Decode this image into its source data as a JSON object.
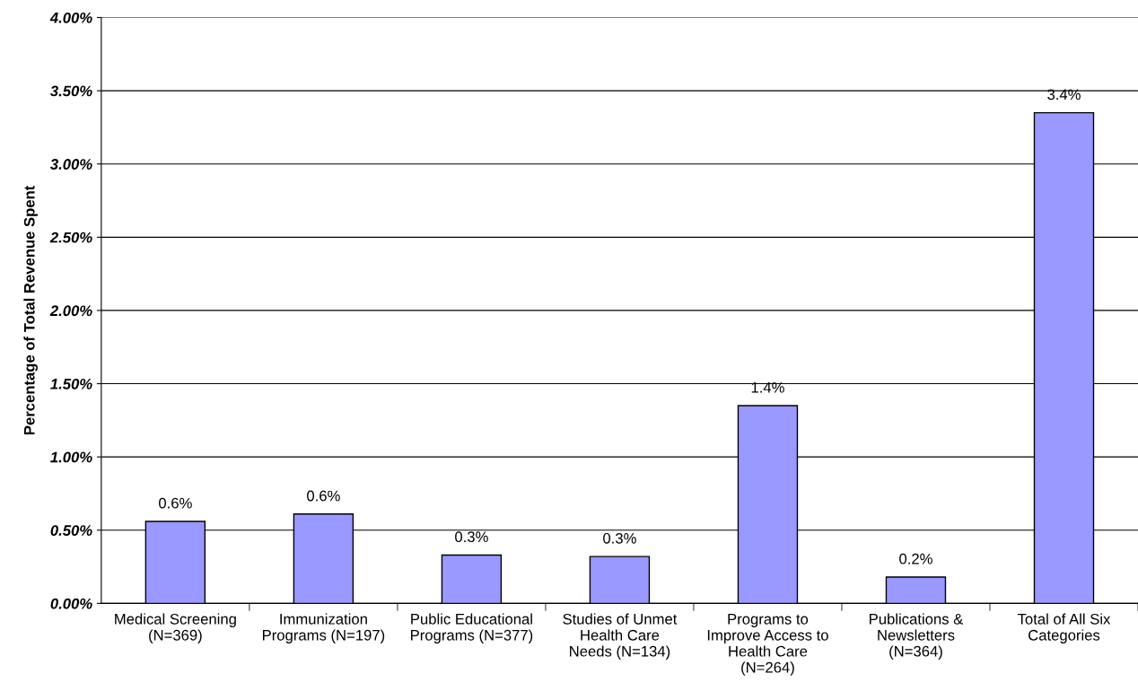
{
  "chart_data": {
    "type": "bar",
    "ylabel": "Percentage of Total Revenue Spent",
    "categories": [
      "Medical Screening\n(N=369)",
      "Immunization\nPrograms (N=197)",
      "Public Educational\nPrograms (N=377)",
      "Studies of Unmet\nHealth Care\nNeeds (N=134)",
      "Programs to\nImprove Access to\nHealth Care\n(N=264)",
      "Publications &\nNewsletters\n(N=364)",
      "Total of All Six\nCategories"
    ],
    "values": [
      0.56,
      0.61,
      0.33,
      0.32,
      1.35,
      0.18,
      3.35
    ],
    "value_labels": [
      "0.6%",
      "0.6%",
      "0.3%",
      "0.3%",
      "1.4%",
      "0.2%",
      "3.4%"
    ],
    "color": "#9999ff",
    "ylim": [
      0,
      4
    ],
    "yticks": [
      {
        "value": 0,
        "label": "0.00%"
      },
      {
        "value": 0.5,
        "label": "0.50%"
      },
      {
        "value": 1,
        "label": "1.00%"
      },
      {
        "value": 1.5,
        "label": "1.50%"
      },
      {
        "value": 2,
        "label": "2.00%"
      },
      {
        "value": 2.5,
        "label": "2.50%"
      },
      {
        "value": 3,
        "label": "3.00%"
      },
      {
        "value": 3.5,
        "label": "3.50%"
      },
      {
        "value": 4,
        "label": "4.00%"
      }
    ],
    "grid": "y"
  }
}
